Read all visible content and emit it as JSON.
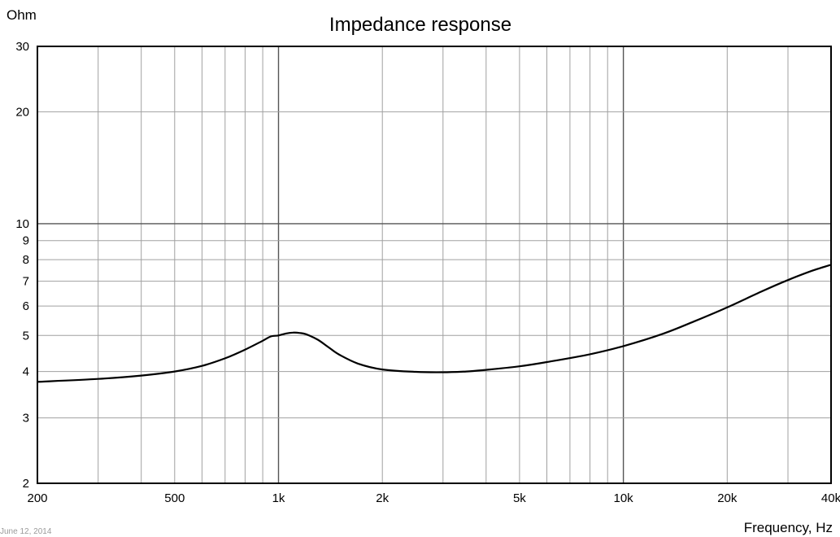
{
  "chart_data": {
    "type": "line",
    "title": "Impedance response",
    "ylabel": "Ohm",
    "xlabel": "Frequency, Hz",
    "x_scale": "log",
    "y_scale": "log",
    "xlim": [
      200,
      40000
    ],
    "ylim": [
      2,
      30
    ],
    "grid": true,
    "x_ticks": [
      {
        "value": 200,
        "label": "200"
      },
      {
        "value": 500,
        "label": "500"
      },
      {
        "value": 1000,
        "label": "1k"
      },
      {
        "value": 2000,
        "label": "2k"
      },
      {
        "value": 5000,
        "label": "5k"
      },
      {
        "value": 10000,
        "label": "10k"
      },
      {
        "value": 20000,
        "label": "20k"
      },
      {
        "value": 40000,
        "label": "40k"
      }
    ],
    "y_ticks": [
      {
        "value": 2,
        "label": "2"
      },
      {
        "value": 3,
        "label": "3"
      },
      {
        "value": 4,
        "label": "4"
      },
      {
        "value": 5,
        "label": "5"
      },
      {
        "value": 6,
        "label": "6"
      },
      {
        "value": 7,
        "label": "7"
      },
      {
        "value": 8,
        "label": "8"
      },
      {
        "value": 9,
        "label": "9"
      },
      {
        "value": 10,
        "label": "10"
      },
      {
        "value": 20,
        "label": "20"
      },
      {
        "value": 30,
        "label": "30"
      }
    ],
    "series": [
      {
        "color": "#000000",
        "x": [
          200,
          300,
          400,
          500,
          600,
          700,
          800,
          900,
          950,
          1000,
          1050,
          1100,
          1150,
          1200,
          1300,
          1400,
          1500,
          1700,
          2000,
          2500,
          3000,
          3500,
          4000,
          5000,
          6000,
          8000,
          10000,
          13000,
          16000,
          20000,
          25000,
          30000,
          35000,
          40000
        ],
        "y": [
          3.75,
          3.82,
          3.9,
          4.0,
          4.14,
          4.34,
          4.58,
          4.84,
          4.97,
          5.0,
          5.06,
          5.09,
          5.08,
          5.04,
          4.87,
          4.64,
          4.44,
          4.2,
          4.05,
          3.99,
          3.98,
          4.0,
          4.04,
          4.13,
          4.24,
          4.45,
          4.68,
          5.05,
          5.45,
          5.95,
          6.55,
          7.05,
          7.45,
          7.75
        ]
      }
    ]
  },
  "footer": {
    "date": "June 12, 2014"
  }
}
